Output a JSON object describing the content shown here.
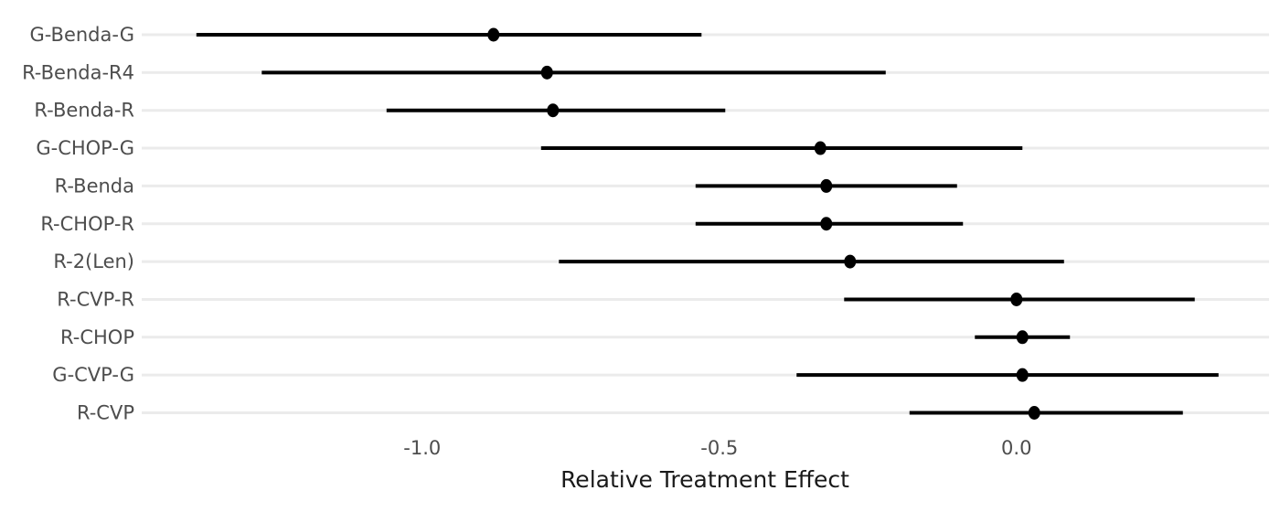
{
  "chart_data": {
    "type": "scatter",
    "subtype": "forest-plot",
    "title": "",
    "xlabel": "Relative Treatment Effect",
    "ylabel": "",
    "xlim": [
      -1.472,
      0.425
    ],
    "x_ticks": [
      {
        "value": -1.0,
        "label": "-1.0"
      },
      {
        "value": -0.5,
        "label": "-0.5"
      },
      {
        "value": 0.0,
        "label": "0.0"
      }
    ],
    "grid": "horizontal-major-only",
    "legend": "none",
    "categories": [
      "G-Benda-G",
      "R-Benda-R4",
      "R-Benda-R",
      "G-CHOP-G",
      "R-Benda",
      "R-CHOP-R",
      "R-2(Len)",
      "R-CVP-R",
      "R-CHOP",
      "G-CVP-G",
      "R-CVP"
    ],
    "rows": [
      {
        "label": "G-Benda-G",
        "estimate": -0.88,
        "ci_low": -1.38,
        "ci_high": -0.53
      },
      {
        "label": "R-Benda-R4",
        "estimate": -0.79,
        "ci_low": -1.27,
        "ci_high": -0.22
      },
      {
        "label": "R-Benda-R",
        "estimate": -0.78,
        "ci_low": -1.06,
        "ci_high": -0.49
      },
      {
        "label": "G-CHOP-G",
        "estimate": -0.33,
        "ci_low": -0.8,
        "ci_high": 0.01
      },
      {
        "label": "R-Benda",
        "estimate": -0.32,
        "ci_low": -0.54,
        "ci_high": -0.1
      },
      {
        "label": "R-CHOP-R",
        "estimate": -0.32,
        "ci_low": -0.54,
        "ci_high": -0.09
      },
      {
        "label": "R-2(Len)",
        "estimate": -0.28,
        "ci_low": -0.77,
        "ci_high": 0.08
      },
      {
        "label": "R-CVP-R",
        "estimate": 0.0,
        "ci_low": -0.29,
        "ci_high": 0.3
      },
      {
        "label": "R-CHOP",
        "estimate": 0.01,
        "ci_low": -0.07,
        "ci_high": 0.09
      },
      {
        "label": "G-CVP-G",
        "estimate": 0.01,
        "ci_low": -0.37,
        "ci_high": 0.34
      },
      {
        "label": "R-CVP",
        "estimate": 0.03,
        "ci_low": -0.18,
        "ci_high": 0.28
      }
    ],
    "colors": {
      "point": "#000000",
      "ci_line": "#000000",
      "gridline": "#ebebeb",
      "tick_label": "#4d4d4d",
      "category_label": "#4d4d4d",
      "axis_title": "#1a1a1a",
      "background": "#ffffff"
    }
  }
}
